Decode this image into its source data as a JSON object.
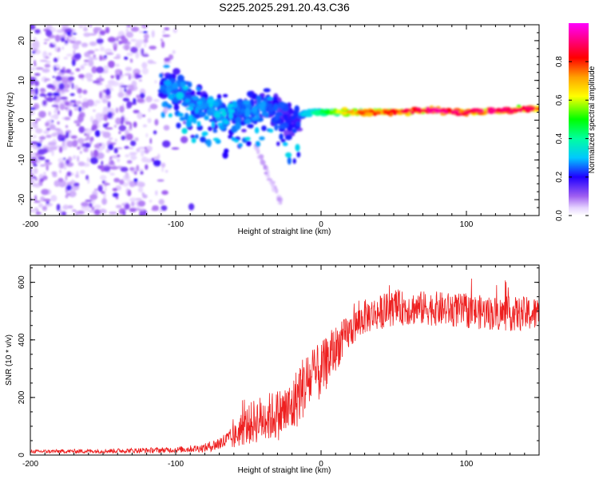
{
  "title": "S225.2025.291.20.43.C36",
  "colors": {
    "snr_line": "#ee2020",
    "axes": "#000000",
    "background": "#ffffff"
  },
  "chart_data": [
    {
      "type": "heatmap",
      "panel": "top",
      "xlabel": "Height of straight line (km)",
      "ylabel": "Frequency (Hz)",
      "xlim": [
        -200,
        150
      ],
      "ylim": [
        -24,
        24
      ],
      "xticks": [
        -200,
        -100,
        0,
        100
      ],
      "yticks": [
        -20,
        -10,
        0,
        10,
        20
      ],
      "colorbar": {
        "label": "Normalized spectral amplitude",
        "range": [
          0,
          1
        ],
        "ticks": [
          "0.0",
          "0.2",
          "0.4",
          "0.6",
          "0.8"
        ],
        "tick_values": [
          0,
          0.2,
          0.4,
          0.6,
          0.8
        ]
      },
      "ridge": {
        "description": "dominant frequency ridge",
        "x": [
          -105,
          -95,
          -85,
          -75,
          -65,
          -55,
          -45,
          -35,
          -25,
          -20,
          -15,
          -10,
          0,
          25,
          50,
          75,
          100,
          125,
          150
        ],
        "y": [
          8,
          7,
          4,
          3,
          1,
          2,
          3,
          4,
          1,
          -1,
          1,
          2,
          2,
          2,
          2,
          2.5,
          2,
          2.5,
          3
        ],
        "amplitude": [
          0.3,
          0.35,
          0.3,
          0.35,
          0.35,
          0.3,
          0.3,
          0.3,
          0.25,
          0.25,
          0.25,
          0.35,
          0.45,
          0.75,
          0.8,
          0.9,
          0.85,
          0.9,
          0.85
        ]
      }
    },
    {
      "type": "line",
      "panel": "bottom",
      "xlabel": "Height of straight line (km)",
      "ylabel": "SNR (10 * v/v)",
      "xlim": [
        -200,
        150
      ],
      "ylim": [
        0,
        660
      ],
      "xticks": [
        -200,
        -100,
        0,
        100
      ],
      "yticks": [
        0,
        200,
        400,
        600
      ],
      "series": [
        {
          "name": "SNR",
          "envelope_x": [
            -200,
            -150,
            -100,
            -80,
            -70,
            -60,
            -55,
            -45,
            -30,
            -20,
            -15,
            -10,
            0,
            10,
            20,
            30,
            50,
            75,
            100,
            125,
            150
          ],
          "mean": [
            12,
            14,
            18,
            25,
            40,
            60,
            90,
            120,
            140,
            160,
            220,
            250,
            290,
            370,
            430,
            480,
            510,
            510,
            500,
            490,
            490
          ],
          "spread": [
            6,
            8,
            10,
            15,
            25,
            40,
            60,
            80,
            90,
            100,
            110,
            110,
            100,
            80,
            60,
            60,
            60,
            60,
            60,
            60,
            60
          ]
        }
      ]
    }
  ]
}
